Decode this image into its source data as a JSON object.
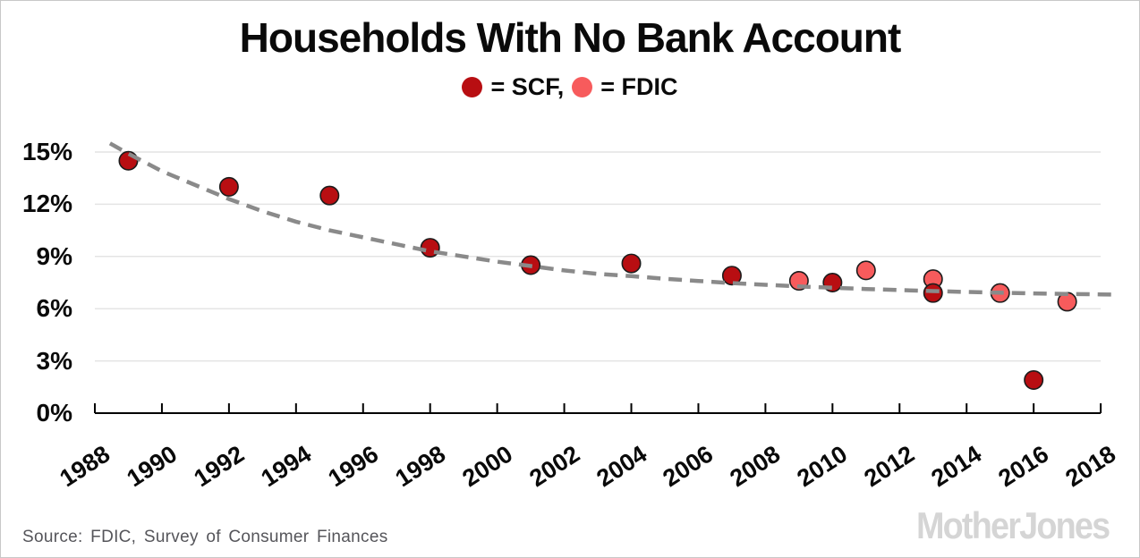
{
  "title": "Households With No Bank Account",
  "legend": {
    "scf": {
      "label": "= SCF,"
    },
    "fdic": {
      "label": "= FDIC"
    }
  },
  "source_note": "Source: FDIC, Survey of Consumer Finances",
  "brand": "MotherJones",
  "colors": {
    "scf": "#b80e12",
    "fdic": "#f75b5c",
    "point_outline": "#1c1c1c",
    "trend": "#8a8a8a",
    "grid": "#e4e4e4",
    "axis": "#000000",
    "title_text": "#0a0a0a",
    "source_text": "#55555a",
    "brand_text": "#d5d5d5"
  },
  "chart_data": {
    "type": "scatter",
    "title": "Households With No Bank Account",
    "xlabel": "",
    "ylabel": "",
    "grid": "horizontal",
    "legend_position": "top-center",
    "xlim": [
      1988,
      2018.6
    ],
    "ylim": [
      0,
      16
    ],
    "x_ticks": [
      1988,
      1990,
      1992,
      1994,
      1996,
      1998,
      2000,
      2002,
      2004,
      2006,
      2008,
      2010,
      2012,
      2014,
      2016,
      2018
    ],
    "y_ticks": [
      {
        "value": 0,
        "label": "0%"
      },
      {
        "value": 3,
        "label": "3%"
      },
      {
        "value": 6,
        "label": "6%"
      },
      {
        "value": 9,
        "label": "9%"
      },
      {
        "value": 12,
        "label": "12%"
      },
      {
        "value": 15,
        "label": "15%"
      }
    ],
    "gridline_values": [
      3,
      6,
      9,
      12,
      15
    ],
    "series": [
      {
        "name": "FDIC",
        "color": "#f75b5c",
        "points": [
          [
            2009,
            7.6
          ],
          [
            2011,
            8.2
          ],
          [
            2013,
            7.7
          ],
          [
            2015,
            6.9
          ],
          [
            2017,
            6.4
          ]
        ]
      },
      {
        "name": "SCF",
        "color": "#b80e12",
        "points": [
          [
            1989,
            14.5
          ],
          [
            1992,
            13.0
          ],
          [
            1995,
            12.5
          ],
          [
            1998,
            9.5
          ],
          [
            2001,
            8.5
          ],
          [
            2004,
            8.6
          ],
          [
            2007,
            7.9
          ],
          [
            2010,
            7.5
          ],
          [
            2013,
            6.9
          ],
          [
            2016,
            1.9
          ]
        ]
      }
    ],
    "trend": {
      "type": "exponential-fit",
      "style": "dashed",
      "color": "#8a8a8a",
      "points": [
        [
          1988.45,
          15.5
        ],
        [
          1989,
          14.9
        ],
        [
          1990,
          13.9
        ],
        [
          1991,
          13.1
        ],
        [
          1992,
          12.3
        ],
        [
          1993,
          11.6
        ],
        [
          1994,
          11.0
        ],
        [
          1995,
          10.5
        ],
        [
          1996,
          10.1
        ],
        [
          1997,
          9.7
        ],
        [
          1998,
          9.3
        ],
        [
          1999,
          9.0
        ],
        [
          2000,
          8.7
        ],
        [
          2001,
          8.45
        ],
        [
          2002,
          8.2
        ],
        [
          2003,
          8.0
        ],
        [
          2004,
          7.87
        ],
        [
          2005,
          7.72
        ],
        [
          2006,
          7.59
        ],
        [
          2007,
          7.47
        ],
        [
          2008,
          7.37
        ],
        [
          2009,
          7.28
        ],
        [
          2010,
          7.2
        ],
        [
          2011,
          7.13
        ],
        [
          2012,
          7.07
        ],
        [
          2013,
          7.01
        ],
        [
          2014,
          6.96
        ],
        [
          2015,
          6.92
        ],
        [
          2016,
          6.88
        ],
        [
          2017,
          6.85
        ],
        [
          2018,
          6.82
        ],
        [
          2018.45,
          6.81
        ]
      ]
    }
  }
}
